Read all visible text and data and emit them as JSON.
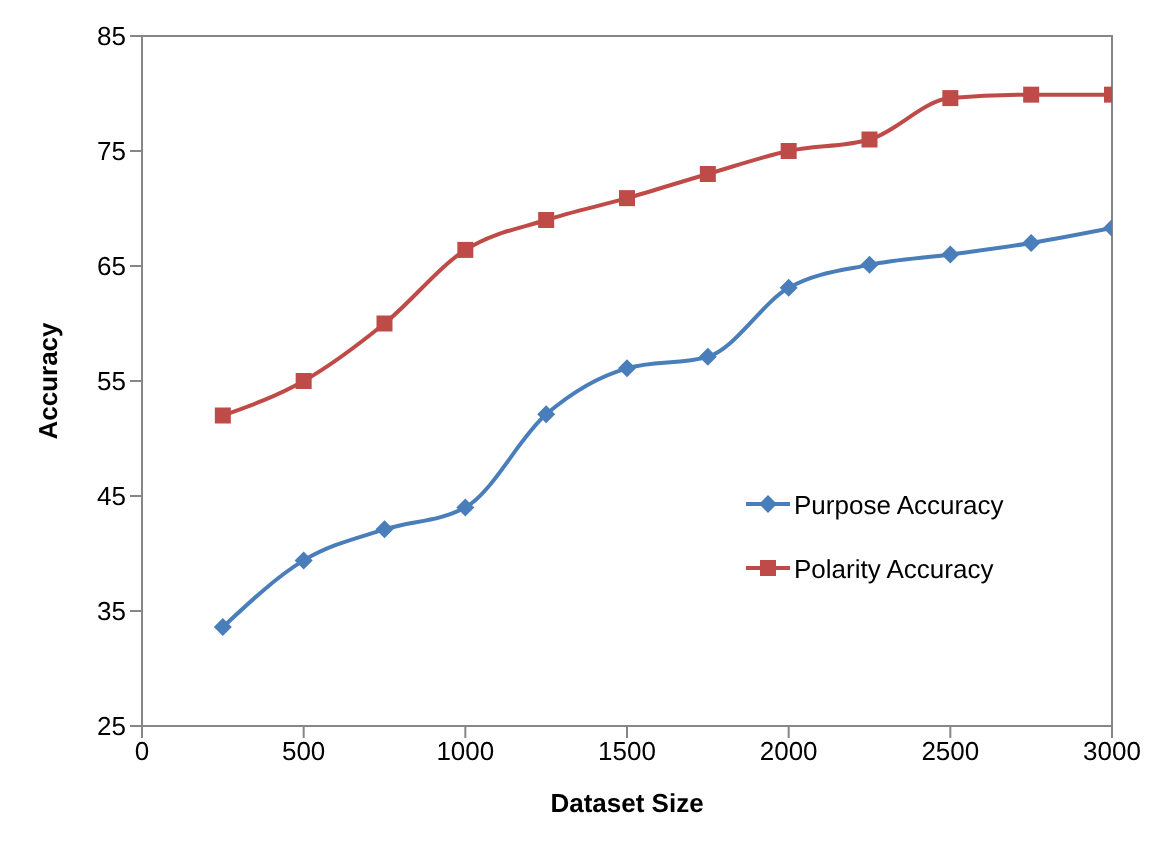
{
  "chart_data": {
    "type": "line",
    "xlabel": "Dataset Size",
    "ylabel": "Accuracy",
    "x": [
      250,
      500,
      750,
      1000,
      1250,
      1500,
      1750,
      2000,
      2250,
      2500,
      2750,
      3000
    ],
    "series": [
      {
        "name": "Purpose Accuracy",
        "color": "#4a7ebb",
        "marker": "diamond",
        "values": [
          33.6,
          39.4,
          42.1,
          44,
          52.1,
          56.1,
          57.1,
          63.1,
          65.1,
          66,
          67,
          68.3
        ]
      },
      {
        "name": "Polarity Accuracy",
        "color": "#be4b48",
        "marker": "square",
        "values": [
          52,
          55,
          60,
          66.4,
          69,
          70.9,
          73,
          75,
          76,
          79.6,
          79.9,
          79.9
        ]
      }
    ],
    "xlim": [
      0,
      3000
    ],
    "xticks": [
      0,
      500,
      1000,
      1500,
      2000,
      2500,
      3000
    ],
    "ylim": [
      25,
      85
    ],
    "yticks": [
      25,
      35,
      45,
      55,
      65,
      75,
      85
    ],
    "grid": false,
    "legend": "right",
    "line_style": "solid"
  }
}
